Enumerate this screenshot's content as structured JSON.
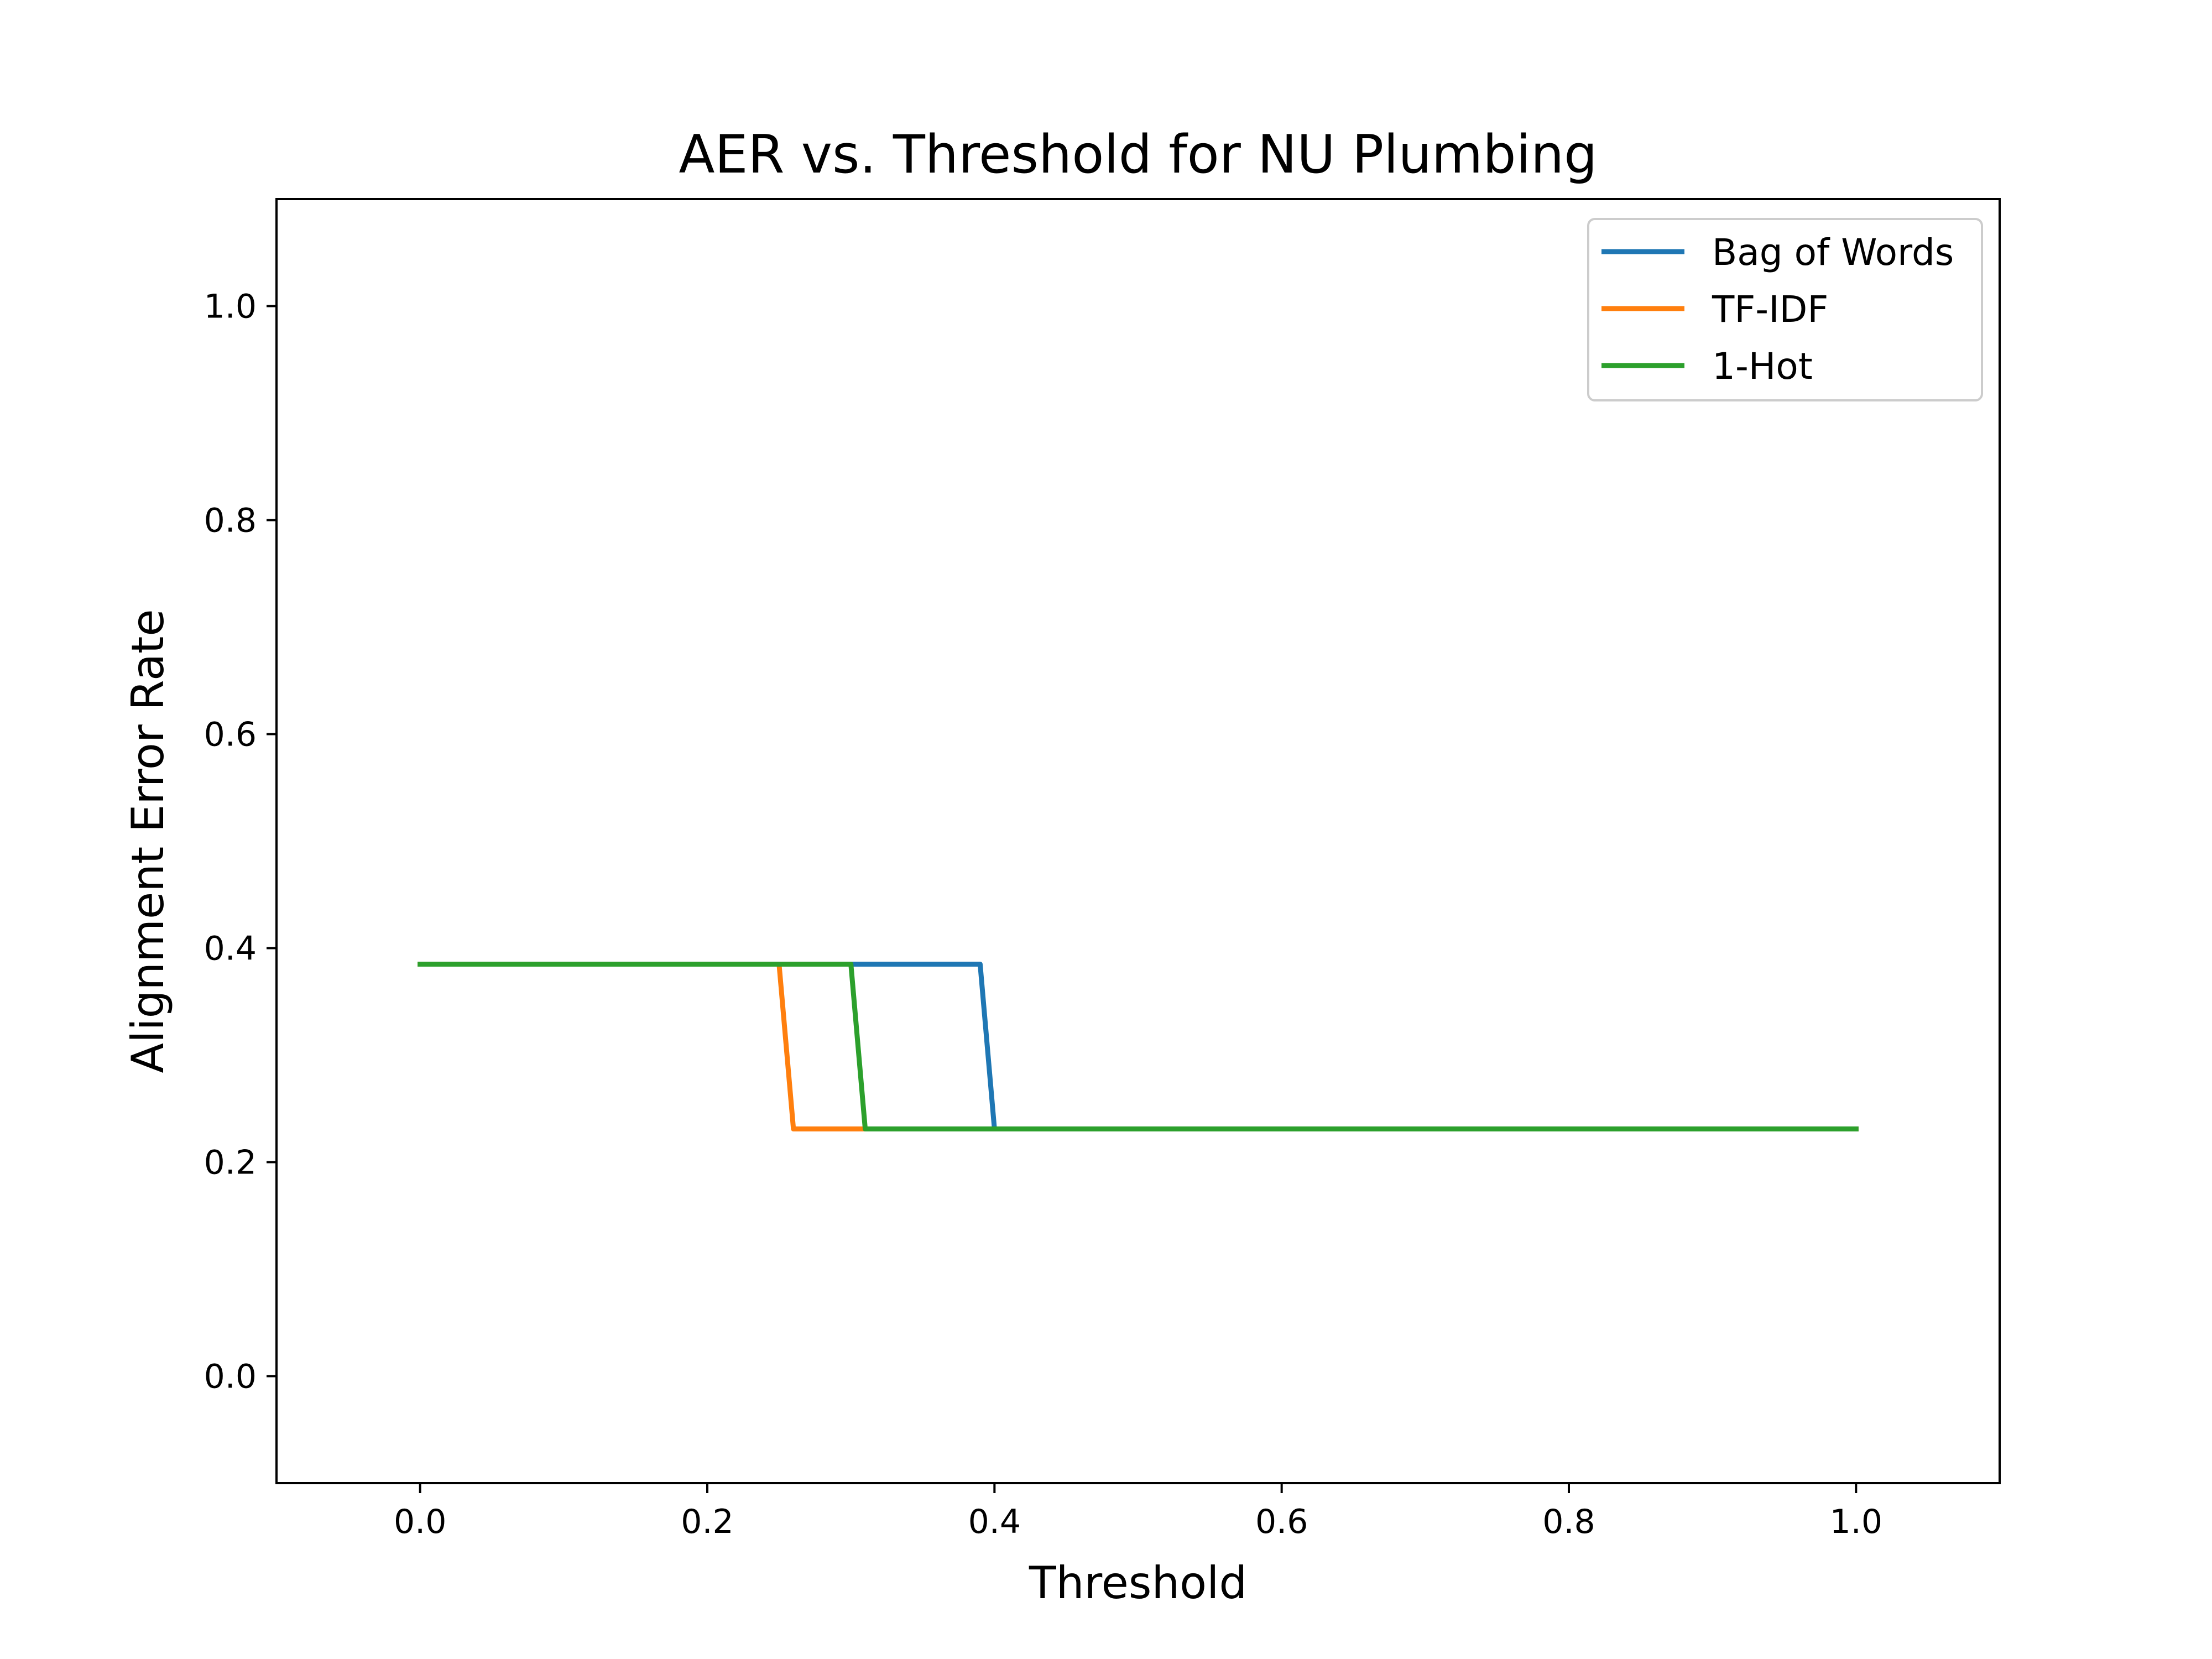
{
  "chart_data": {
    "type": "line",
    "title": "AER vs. Threshold for NU Plumbing",
    "xlabel": "Threshold",
    "ylabel": "Alignment Error Rate",
    "xlim": [
      -0.1,
      1.1
    ],
    "ylim": [
      -0.1,
      1.1
    ],
    "xticks": [
      0.0,
      0.2,
      0.4,
      0.6,
      0.8,
      1.0
    ],
    "yticks": [
      0.0,
      0.2,
      0.4,
      0.6,
      0.8,
      1.0
    ],
    "xtick_labels": [
      "0.0",
      "0.2",
      "0.4",
      "0.6",
      "0.8",
      "1.0"
    ],
    "ytick_labels": [
      "0.0",
      "0.2",
      "0.4",
      "0.6",
      "0.8",
      "1.0"
    ],
    "grid": false,
    "legend_position": "top-right",
    "series": [
      {
        "name": "Bag of Words",
        "color": "#1f77b4",
        "x": [
          0.0,
          0.39,
          0.4,
          1.0
        ],
        "y": [
          0.385,
          0.385,
          0.231,
          0.231
        ]
      },
      {
        "name": "TF-IDF",
        "color": "#ff7f0e",
        "x": [
          0.0,
          0.25,
          0.26,
          1.0
        ],
        "y": [
          0.385,
          0.385,
          0.231,
          0.231
        ]
      },
      {
        "name": "1-Hot",
        "color": "#2ca02c",
        "x": [
          0.0,
          0.3,
          0.31,
          1.0
        ],
        "y": [
          0.385,
          0.385,
          0.231,
          0.231
        ]
      }
    ]
  }
}
